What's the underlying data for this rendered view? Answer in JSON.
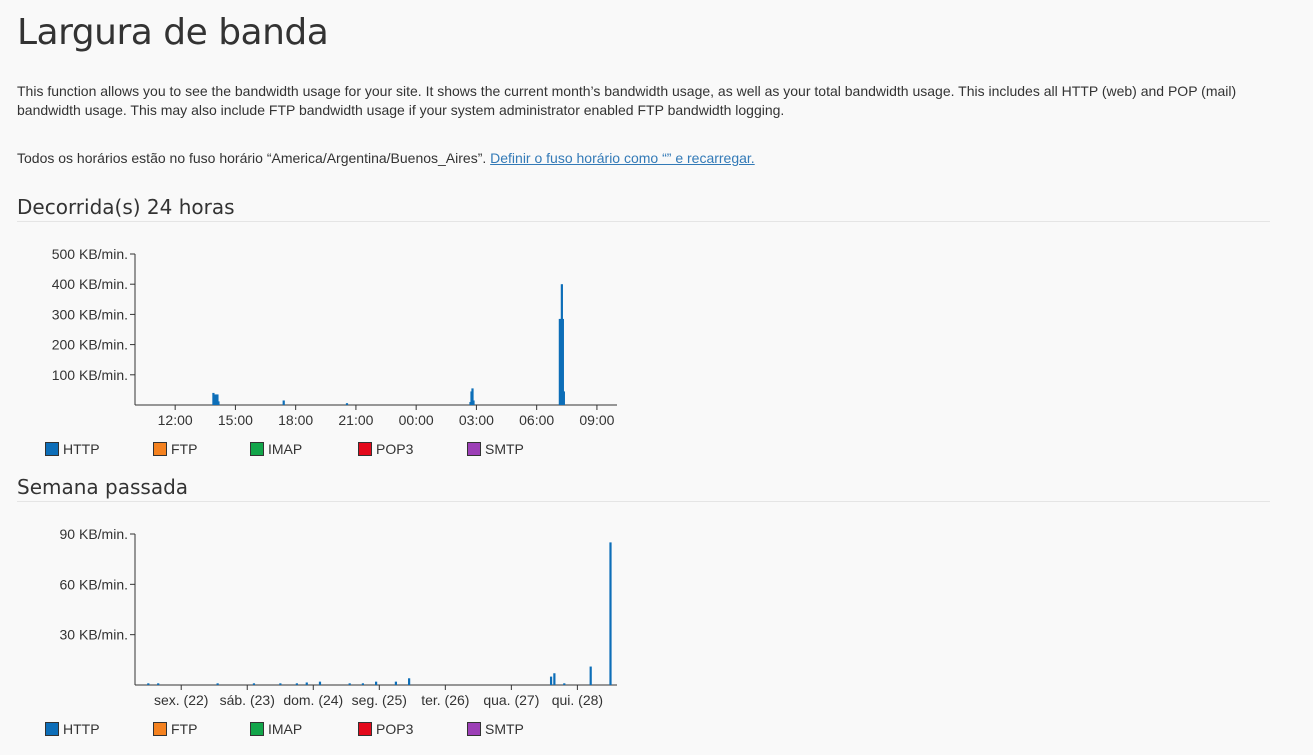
{
  "page": {
    "title": "Largura de banda",
    "description": "This function allows you to see the bandwidth usage for your site. It shows the current month’s bandwidth usage, as well as your total bandwidth usage. This includes all HTTP (web) and POP (mail) bandwidth usage. This may also include FTP bandwidth usage if your system administrator enabled FTP bandwidth logging.",
    "timezone_text": "Todos os horários estão no fuso horário “America/Argentina/Buenos_Aires”.",
    "timezone_link": "Definir o fuso horário como “” e recarregar."
  },
  "sections": {
    "day": {
      "title": "Decorrida(s) 24 horas"
    },
    "week": {
      "title": "Semana passada"
    }
  },
  "legend": [
    {
      "label": "HTTP",
      "color": "#0d6eb8"
    },
    {
      "label": "FTP",
      "color": "#f58220"
    },
    {
      "label": "IMAP",
      "color": "#12a54a"
    },
    {
      "label": "POP3",
      "color": "#e3091b"
    },
    {
      "label": "SMTP",
      "color": "#9c3fb6"
    }
  ],
  "chart_data": [
    {
      "type": "bar",
      "series": [
        {
          "name": "HTTP",
          "color": "#0d6eb8"
        }
      ],
      "ylim": [
        0,
        500
      ],
      "yticks": [
        {
          "value": 100,
          "label": "100 KB/min."
        },
        {
          "value": 200,
          "label": "200 KB/min."
        },
        {
          "value": 300,
          "label": "300 KB/min."
        },
        {
          "value": 400,
          "label": "400 KB/min."
        },
        {
          "value": 500,
          "label": "500 KB/min."
        }
      ],
      "xlim": [
        10,
        34
      ],
      "xticks": [
        {
          "value": 12,
          "label": "12:00"
        },
        {
          "value": 15,
          "label": "15:00"
        },
        {
          "value": 18,
          "label": "18:00"
        },
        {
          "value": 21,
          "label": "21:00"
        },
        {
          "value": 24,
          "label": "00:00"
        },
        {
          "value": 27,
          "label": "03:00"
        },
        {
          "value": 30,
          "label": "06:00"
        },
        {
          "value": 33,
          "label": "09:00"
        }
      ],
      "points": [
        {
          "x": 13.9,
          "y": 40
        },
        {
          "x": 13.95,
          "y": 30
        },
        {
          "x": 14.0,
          "y": 35
        },
        {
          "x": 14.05,
          "y": 25
        },
        {
          "x": 14.1,
          "y": 35
        },
        {
          "x": 14.15,
          "y": 12
        },
        {
          "x": 17.4,
          "y": 15
        },
        {
          "x": 20.55,
          "y": 6
        },
        {
          "x": 26.7,
          "y": 10
        },
        {
          "x": 26.75,
          "y": 45
        },
        {
          "x": 26.8,
          "y": 55
        },
        {
          "x": 26.85,
          "y": 15
        },
        {
          "x": 31.15,
          "y": 285
        },
        {
          "x": 31.2,
          "y": 285
        },
        {
          "x": 31.25,
          "y": 400
        },
        {
          "x": 31.3,
          "y": 285
        },
        {
          "x": 31.35,
          "y": 45
        }
      ]
    },
    {
      "type": "bar",
      "series": [
        {
          "name": "HTTP",
          "color": "#0d6eb8"
        }
      ],
      "ylim": [
        0,
        90
      ],
      "yticks": [
        {
          "value": 30,
          "label": "30 KB/min."
        },
        {
          "value": 60,
          "label": "60 KB/min."
        },
        {
          "value": 90,
          "label": "90 KB/min."
        }
      ],
      "xlim": [
        21.3,
        28.6
      ],
      "xticks": [
        {
          "value": 22,
          "label": "sex. (22)"
        },
        {
          "value": 23,
          "label": "sáb. (23)"
        },
        {
          "value": 24,
          "label": "dom. (24)"
        },
        {
          "value": 25,
          "label": "seg. (25)"
        },
        {
          "value": 26,
          "label": "ter. (26)"
        },
        {
          "value": 27,
          "label": "qua. (27)"
        },
        {
          "value": 28,
          "label": "qui. (28)"
        }
      ],
      "points": [
        {
          "x": 21.5,
          "y": 1
        },
        {
          "x": 21.65,
          "y": 1
        },
        {
          "x": 22.55,
          "y": 1
        },
        {
          "x": 23.1,
          "y": 1
        },
        {
          "x": 23.5,
          "y": 1
        },
        {
          "x": 23.75,
          "y": 1
        },
        {
          "x": 23.9,
          "y": 1.5
        },
        {
          "x": 24.1,
          "y": 2
        },
        {
          "x": 24.55,
          "y": 1
        },
        {
          "x": 24.75,
          "y": 1
        },
        {
          "x": 24.95,
          "y": 2
        },
        {
          "x": 25.25,
          "y": 2
        },
        {
          "x": 25.45,
          "y": 4
        },
        {
          "x": 27.6,
          "y": 5
        },
        {
          "x": 27.65,
          "y": 7
        },
        {
          "x": 27.8,
          "y": 1
        },
        {
          "x": 28.2,
          "y": 11
        },
        {
          "x": 28.5,
          "y": 85
        }
      ]
    }
  ]
}
